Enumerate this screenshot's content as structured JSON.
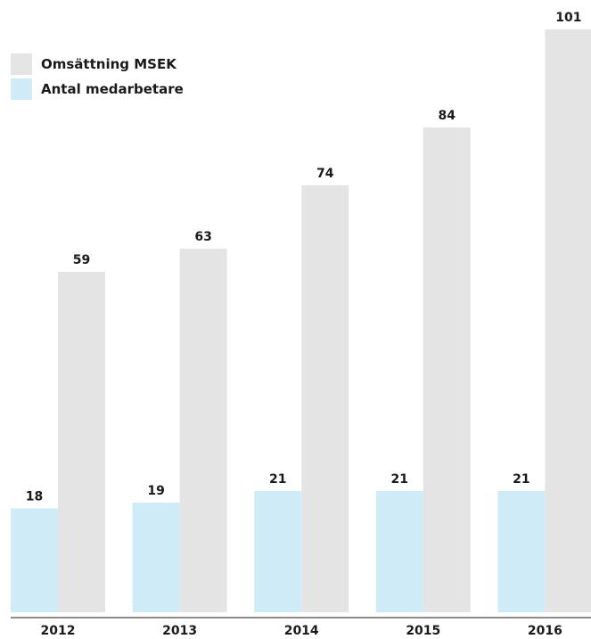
{
  "chart_data": {
    "type": "bar",
    "title": "",
    "xlabel": "",
    "ylabel": "",
    "categories": [
      "2012",
      "2013",
      "2014",
      "2015",
      "2016"
    ],
    "series": [
      {
        "name": "Antal medarbetare",
        "color": "#d0ebf8",
        "values": [
          18,
          19,
          21,
          21,
          21
        ]
      },
      {
        "name": "Omsättning MSEK",
        "color": "#e4e4e5",
        "values": [
          59,
          63,
          74,
          84,
          101
        ]
      }
    ],
    "legend_order": [
      1,
      0
    ],
    "ylim": [
      0,
      101
    ],
    "grid": false,
    "legend_position": "top-left",
    "axis_color": "#1a1a1a"
  }
}
